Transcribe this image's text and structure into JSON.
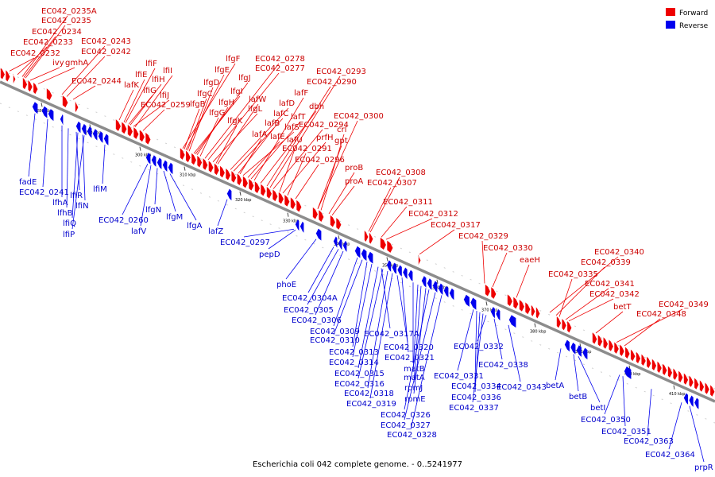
{
  "title": "Escherichia coli 042 complete genome. - 0..5241977",
  "legend": [
    {
      "label": "Forward",
      "color": "#ee0000"
    },
    {
      "label": "Reverse",
      "color": "#0000ee"
    }
  ],
  "colors": {
    "forward": "#ee0000",
    "reverse": "#0000ee",
    "backbone": "#888888"
  },
  "ticks": [
    "280 kbp",
    "290 kbp",
    "300 kbp",
    "310 kbp",
    "320 kbp",
    "330 kbp",
    "340 kbp",
    "350 kbp",
    "360 kbp",
    "370 kbp",
    "380 kbp",
    "390 kbp",
    "400 kbp",
    "410 kbp"
  ],
  "forward_labels": [
    "EC042_0235A",
    "EC042_0235",
    "EC042_0234",
    "EC042_0233",
    "EC042_0232",
    "ivy",
    "gmhA",
    "EC042_0243",
    "EC042_0242",
    "EC042_0244",
    "lafK",
    "lfiF",
    "lfiE",
    "lfiI",
    "lfiH",
    "lfiG",
    "lfiJ",
    "EC042_0259",
    "lfgF",
    "lfgE",
    "lfgD",
    "lfgC",
    "lfgB",
    "lfgJ",
    "lfgI",
    "lfgH",
    "lfgG",
    "EC042_0278",
    "EC042_0277",
    "lfgL",
    "lfgK",
    "lafW",
    "lafD",
    "lafC",
    "lafB",
    "lafS",
    "lafA",
    "lafE",
    "lafT",
    "lafF",
    "dbh",
    "EC042_0293",
    "EC042_0290",
    "EC042_0294",
    "lafU",
    "prfH",
    "EC042_0291",
    "EC042_0296",
    "EC042_0300",
    "crl",
    "gpt",
    "proB",
    "proA",
    "EC042_0308",
    "EC042_0307",
    "EC042_0311",
    "EC042_0312",
    "EC042_0317",
    "EC042_0329",
    "EC042_0330",
    "eaeH",
    "EC042_0340",
    "EC042_0339",
    "EC042_0335",
    "EC042_0341",
    "EC042_0342",
    "betT",
    "EC042_0349",
    "EC042_0348"
  ],
  "reverse_labels": [
    "fadE",
    "EC042_0241",
    "lfhA",
    "lfiR",
    "lfhB",
    "lfiN",
    "lfiQ",
    "lfiP",
    "lfiM",
    "EC042_0260",
    "lafV",
    "lfgN",
    "lfgM",
    "lfgA",
    "lafZ",
    "EC042_0297",
    "pepD",
    "phoE",
    "EC042_0304A",
    "EC042_0305",
    "EC042_0306",
    "EC042_0309",
    "EC042_0310",
    "EC042_0317A",
    "EC042_0313",
    "EC042_0314",
    "EC042_0320",
    "EC042_0321",
    "EC042_0315",
    "EC042_0316",
    "matB",
    "matA",
    "EC042_0318",
    "EC042_0319",
    "rpmJ",
    "rpmE",
    "EC042_0326",
    "EC042_0327",
    "EC042_0328",
    "EC042_0332",
    "EC042_0331",
    "EC042_0338",
    "EC042_0334",
    "EC042_0336",
    "EC042_0337",
    "EC042_0343",
    "betA",
    "betB",
    "betI",
    "EC042_0350",
    "EC042_0351",
    "EC042_0363",
    "EC042_0364",
    "prpR"
  ]
}
